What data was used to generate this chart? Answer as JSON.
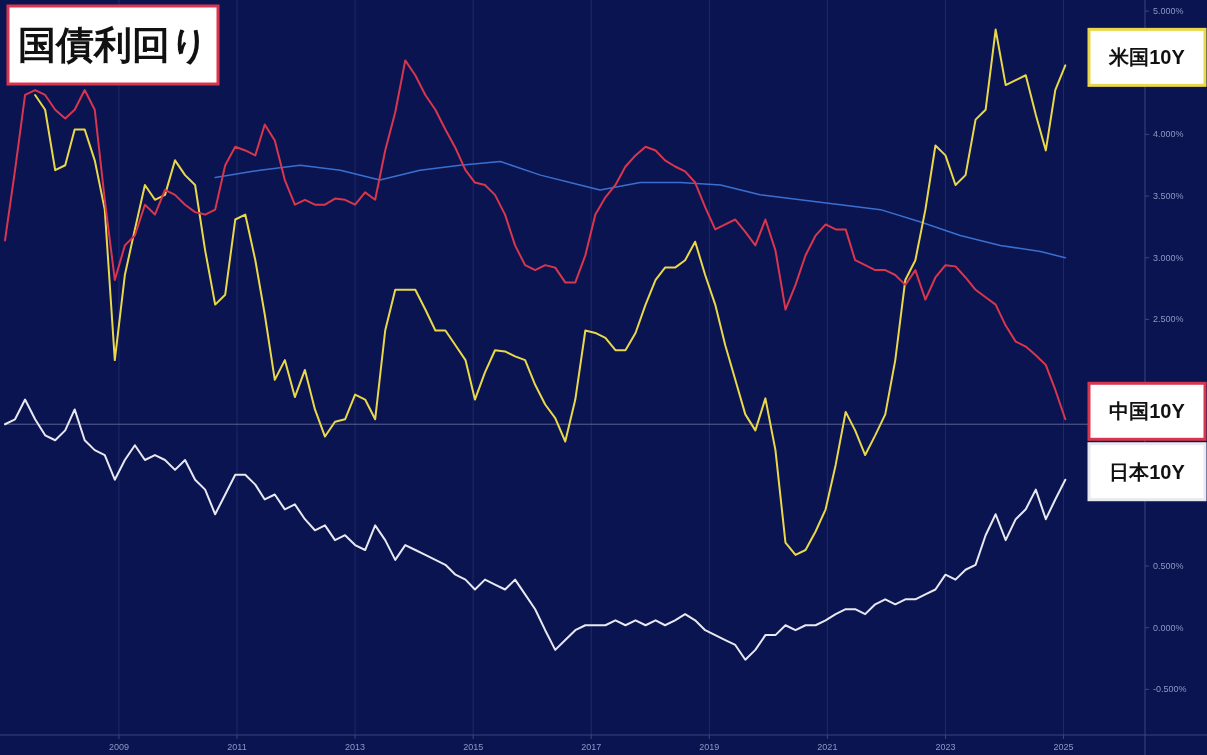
{
  "chart_data": {
    "type": "line",
    "title": "国債利回り",
    "x": [
      2007.07,
      2007.24,
      2007.41,
      2007.58,
      2007.75,
      2007.92,
      2008.09,
      2008.25,
      2008.42,
      2008.59,
      2008.76,
      2008.93,
      2009.1,
      2009.27,
      2009.44,
      2009.61,
      2009.78,
      2009.95,
      2010.12,
      2010.29,
      2010.46,
      2010.63,
      2010.8,
      2010.97,
      2011.14,
      2011.31,
      2011.47,
      2011.64,
      2011.81,
      2011.98,
      2012.15,
      2012.32,
      2012.49,
      2012.66,
      2012.83,
      2013.0,
      2013.17,
      2013.34,
      2013.51,
      2013.68,
      2013.85,
      2014.02,
      2014.19,
      2014.36,
      2014.53,
      2014.7,
      2014.87,
      2015.03,
      2015.2,
      2015.37,
      2015.54,
      2015.71,
      2015.88,
      2016.05,
      2016.22,
      2016.39,
      2016.56,
      2016.73,
      2016.9,
      2017.07,
      2017.24,
      2017.41,
      2017.58,
      2017.75,
      2017.92,
      2018.09,
      2018.25,
      2018.42,
      2018.59,
      2018.76,
      2018.93,
      2019.1,
      2019.27,
      2019.44,
      2019.61,
      2019.78,
      2019.95,
      2020.12,
      2020.29,
      2020.46,
      2020.63,
      2020.8,
      2020.97,
      2021.14,
      2021.31,
      2021.47,
      2021.64,
      2021.81,
      2021.98,
      2022.15,
      2022.32,
      2022.49,
      2022.66,
      2022.83,
      2023.0,
      2023.17,
      2023.34,
      2023.51,
      2023.68,
      2023.85,
      2024.02,
      2024.19,
      2024.36,
      2024.53,
      2024.7,
      2024.86,
      2025.03
    ],
    "xlim": [
      2007.07,
      2027.43
    ],
    "xticks": [
      2009,
      2011,
      2013,
      2015,
      2017,
      2019,
      2021,
      2023,
      2025
    ],
    "ylim": [
      -0.87,
      5.09
    ],
    "yticks": [
      {
        "value": 5,
        "label": "5.000%"
      },
      {
        "value": 4,
        "label": "4.000%"
      },
      {
        "value": 3.5,
        "label": "3.500%"
      },
      {
        "value": 3,
        "label": "3.000%"
      },
      {
        "value": 2.5,
        "label": "2.500%"
      },
      {
        "value": 0.5,
        "label": "0.500%"
      },
      {
        "value": 0,
        "label": "0.000%"
      },
      {
        "value": -0.5,
        "label": "-0.500%"
      }
    ],
    "grid": "x",
    "ref_lines": [
      {
        "axis": "y",
        "value": 1.65,
        "color": "#5a6190"
      }
    ],
    "series": [
      {
        "color": "#3a6fd0",
        "x": [
          2010.63,
          2011.39,
          2012.07,
          2012.75,
          2013.42,
          2014.1,
          2014.78,
          2015.46,
          2016.14,
          2016.81,
          2017.15,
          2017.83,
          2018.51,
          2019.19,
          2019.86,
          2020.54,
          2021.22,
          2021.9,
          2022.58,
          2023.25,
          2023.93,
          2024.61,
          2025.03
        ],
        "values": [
          3.65,
          3.71,
          3.75,
          3.71,
          3.63,
          3.71,
          3.75,
          3.78,
          3.67,
          3.59,
          3.55,
          3.61,
          3.61,
          3.59,
          3.51,
          3.47,
          3.43,
          3.39,
          3.29,
          3.18,
          3.1,
          3.05,
          3.0
        ]
      },
      {
        "name": "米国10Y",
        "color": "#e8d84a",
        "values": [
          null,
          null,
          null,
          4.32,
          4.2,
          3.71,
          3.75,
          4.04,
          4.04,
          3.79,
          3.39,
          2.17,
          2.86,
          3.23,
          3.59,
          3.47,
          3.51,
          3.79,
          3.67,
          3.59,
          3.06,
          2.62,
          2.7,
          3.31,
          3.35,
          2.98,
          2.54,
          2.01,
          2.17,
          1.87,
          2.09,
          1.77,
          1.55,
          1.67,
          1.69,
          1.89,
          1.85,
          1.69,
          2.41,
          2.74,
          2.74,
          2.74,
          2.58,
          2.41,
          2.41,
          2.29,
          2.17,
          1.85,
          2.07,
          2.25,
          2.24,
          2.2,
          2.17,
          1.97,
          1.81,
          1.7,
          1.51,
          1.85,
          2.41,
          2.39,
          2.35,
          2.25,
          2.25,
          2.39,
          2.62,
          2.82,
          2.92,
          2.92,
          2.98,
          3.13,
          2.86,
          2.62,
          2.29,
          2.01,
          1.73,
          1.6,
          1.86,
          1.44,
          0.69,
          0.59,
          0.63,
          0.78,
          0.96,
          1.32,
          1.75,
          1.6,
          1.4,
          1.56,
          1.73,
          2.17,
          2.82,
          2.98,
          3.39,
          3.91,
          3.83,
          3.59,
          3.67,
          4.12,
          4.2,
          4.85,
          4.4,
          4.44,
          4.48,
          4.16,
          3.87,
          4.36,
          4.56
        ]
      },
      {
        "name": "中国10Y",
        "color": "#d8364e",
        "values": [
          3.14,
          3.71,
          4.32,
          4.36,
          4.32,
          4.2,
          4.13,
          4.2,
          4.36,
          4.2,
          3.47,
          2.82,
          3.1,
          3.18,
          3.43,
          3.35,
          3.55,
          3.51,
          3.43,
          3.37,
          3.35,
          3.39,
          3.75,
          3.9,
          3.87,
          3.83,
          4.08,
          3.95,
          3.63,
          3.43,
          3.47,
          3.43,
          3.43,
          3.48,
          3.47,
          3.43,
          3.53,
          3.47,
          3.87,
          4.18,
          4.6,
          4.48,
          4.32,
          4.2,
          4.04,
          3.89,
          3.71,
          3.61,
          3.59,
          3.51,
          3.35,
          3.1,
          2.94,
          2.9,
          2.94,
          2.92,
          2.8,
          2.8,
          3.02,
          3.35,
          3.49,
          3.59,
          3.74,
          3.83,
          3.9,
          3.87,
          3.79,
          3.74,
          3.7,
          3.61,
          3.41,
          3.23,
          3.27,
          3.31,
          3.21,
          3.1,
          3.31,
          3.06,
          2.58,
          2.78,
          3.02,
          3.18,
          3.27,
          3.23,
          3.23,
          2.98,
          2.94,
          2.9,
          2.9,
          2.86,
          2.78,
          2.9,
          2.66,
          2.84,
          2.94,
          2.93,
          2.84,
          2.74,
          2.68,
          2.62,
          2.45,
          2.32,
          2.28,
          2.21,
          2.13,
          1.93,
          1.69
        ]
      },
      {
        "name": "日本10Y",
        "color": "#e8e8f0",
        "values": [
          1.65,
          1.69,
          1.85,
          1.69,
          1.56,
          1.52,
          1.6,
          1.77,
          1.52,
          1.44,
          1.4,
          1.2,
          1.36,
          1.48,
          1.36,
          1.4,
          1.36,
          1.28,
          1.36,
          1.2,
          1.12,
          0.92,
          1.08,
          1.24,
          1.24,
          1.16,
          1.04,
          1.08,
          0.96,
          1.0,
          0.88,
          0.79,
          0.83,
          0.71,
          0.75,
          0.67,
          0.63,
          0.83,
          0.71,
          0.55,
          0.67,
          0.63,
          0.59,
          0.55,
          0.51,
          0.43,
          0.39,
          0.31,
          0.39,
          0.35,
          0.31,
          0.39,
          0.27,
          0.15,
          -0.02,
          -0.18,
          -0.1,
          -0.02,
          0.02,
          0.02,
          0.02,
          0.06,
          0.02,
          0.06,
          0.02,
          0.06,
          0.02,
          0.06,
          0.11,
          0.06,
          -0.02,
          -0.06,
          -0.1,
          -0.14,
          -0.26,
          -0.18,
          -0.06,
          -0.06,
          0.02,
          -0.02,
          0.02,
          0.02,
          0.06,
          0.11,
          0.15,
          0.15,
          0.11,
          0.19,
          0.23,
          0.19,
          0.23,
          0.23,
          0.27,
          0.31,
          0.43,
          0.39,
          0.47,
          0.51,
          0.75,
          0.92,
          0.71,
          0.88,
          0.96,
          1.12,
          0.88,
          1.04,
          1.2
        ]
      }
    ]
  }
}
